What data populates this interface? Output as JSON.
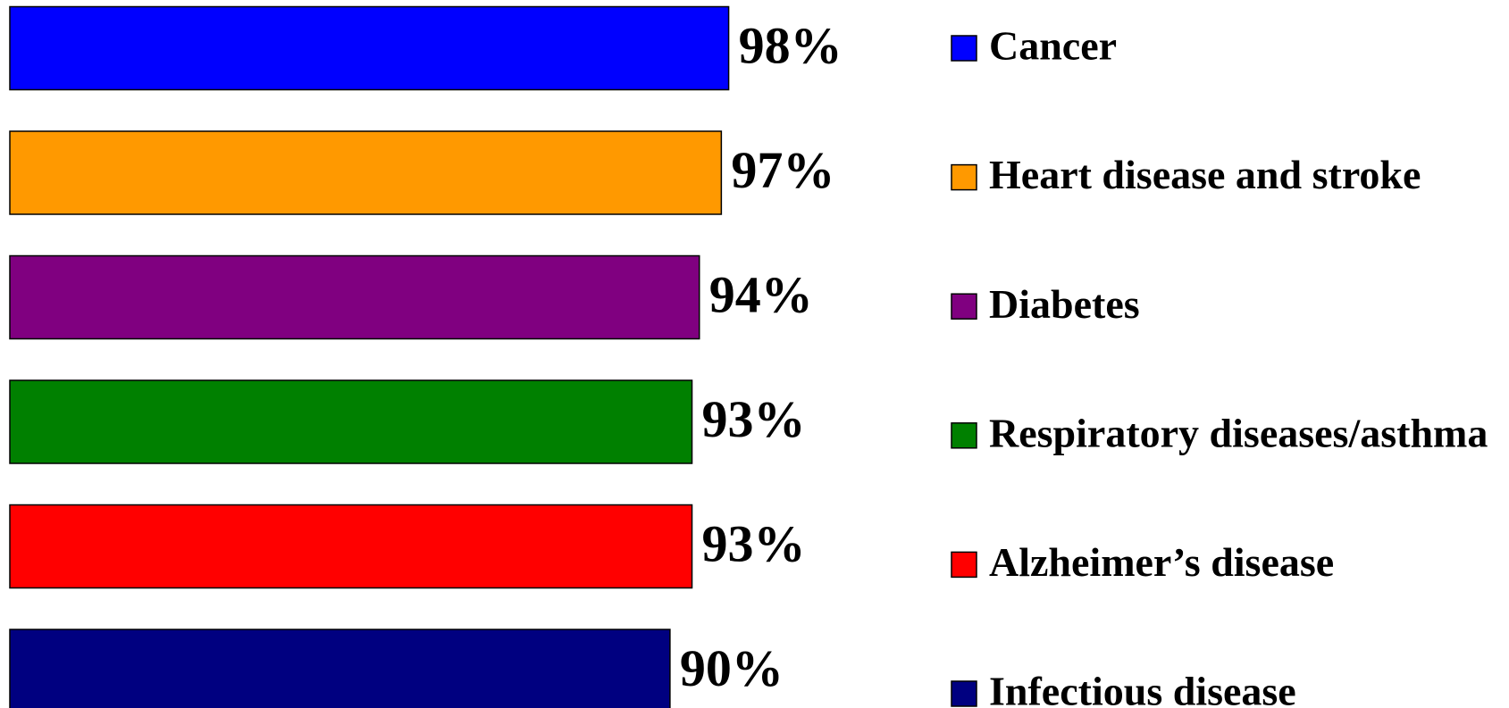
{
  "chart_data": {
    "type": "bar",
    "orientation": "horizontal",
    "categories": [
      "Cancer",
      "Heart disease and stroke",
      "Diabetes",
      "Respiratory diseases/asthma",
      "Alzheimer’s disease",
      "Infectious disease"
    ],
    "values": [
      98,
      97,
      94,
      93,
      93,
      90
    ],
    "value_labels": [
      "98%",
      "97%",
      "94%",
      "93%",
      "93%",
      "90%"
    ],
    "colors": [
      "#0000ff",
      "#ff9900",
      "#800080",
      "#008000",
      "#ff0000",
      "#000080"
    ],
    "legend": "right"
  }
}
